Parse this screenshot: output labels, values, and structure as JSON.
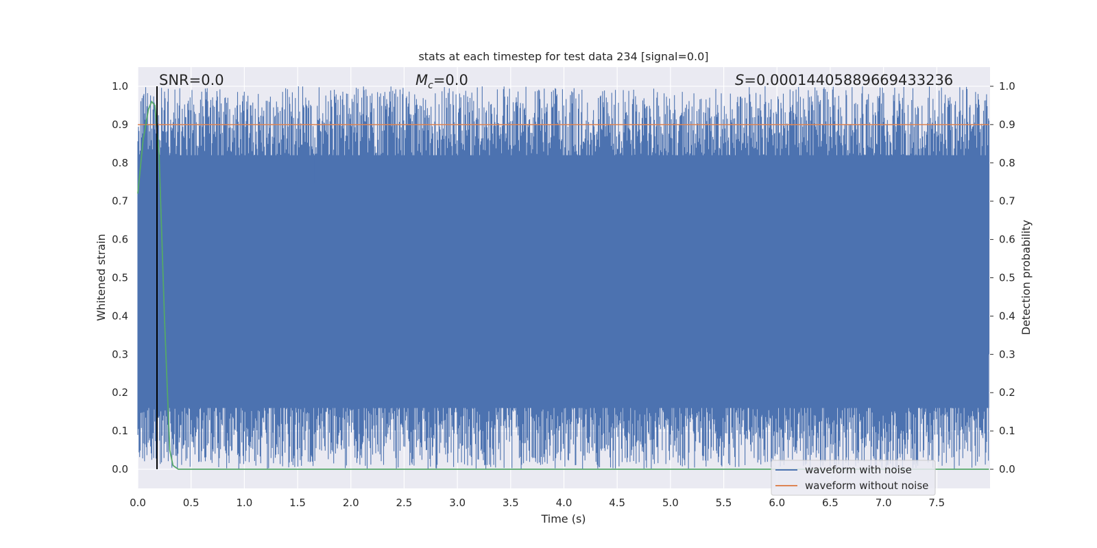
{
  "chart_data": {
    "type": "line",
    "title": "stats at each timestep for test data 234 [signal=0.0]",
    "xlabel": "Time (s)",
    "ylabel_left": "Whitened strain",
    "ylabel_right": "Detection probability",
    "xlim": [
      0.0,
      8.0
    ],
    "ylim": [
      -0.05,
      1.05
    ],
    "ylim_right": [
      -0.05,
      1.05
    ],
    "xticks": [
      "0.0",
      "0.5",
      "1.0",
      "1.5",
      "2.0",
      "2.5",
      "3.0",
      "3.5",
      "4.0",
      "4.5",
      "5.0",
      "5.5",
      "6.0",
      "6.5",
      "7.0",
      "7.5"
    ],
    "yticks": [
      "0.0",
      "0.1",
      "0.2",
      "0.3",
      "0.4",
      "0.5",
      "0.6",
      "0.7",
      "0.8",
      "0.9",
      "1.0"
    ],
    "grid": true,
    "legend_position": "lower-right",
    "annotations": {
      "snr": "SNR=0.0",
      "mc_symbol": "M",
      "mc_sub": "c",
      "mc_value": "=0.0",
      "s_symbol": "S",
      "s_value": "=0.00014405889669433236"
    },
    "vertical_marker_x": 0.18,
    "threshold_y": 0.9,
    "series": [
      {
        "name": "waveform with noise",
        "color": "#4c72b0",
        "kind": "dense-noise",
        "sampling_rate_hz": 512,
        "envelope_low": 0.0,
        "envelope_high": 1.0
      },
      {
        "name": "waveform without noise",
        "color": "#dd8452",
        "x": [
          0.0,
          7.99
        ],
        "y": [
          0.9,
          0.9
        ]
      },
      {
        "color": "#55a868",
        "x": [
          0.0,
          0.05,
          0.1,
          0.13,
          0.16,
          0.2,
          0.25,
          0.3,
          0.33,
          0.38,
          7.99
        ],
        "y": [
          0.72,
          0.86,
          0.94,
          0.96,
          0.95,
          0.82,
          0.4,
          0.05,
          0.01,
          0.0,
          0.0
        ]
      }
    ]
  },
  "colors": {
    "plot_background": "#eaeaf2",
    "grid": "#ffffff",
    "marker_line": "#000000"
  }
}
